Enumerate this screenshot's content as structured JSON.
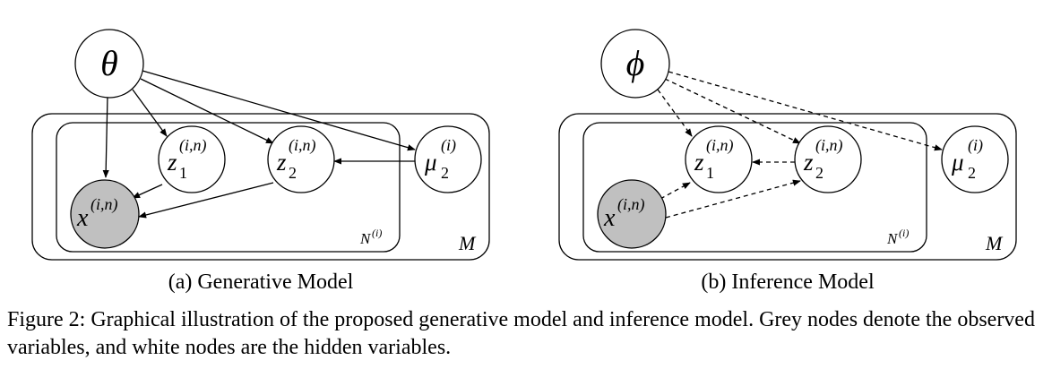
{
  "panel_a": {
    "subcaption": "(a) Generative Model",
    "param_symbol": "θ",
    "nodes": {
      "x": {
        "base": "x",
        "sup": "(i,n)",
        "sub": "",
        "observed": true
      },
      "z1": {
        "base": "z",
        "sup": "(i,n)",
        "sub": "1",
        "observed": false
      },
      "z2": {
        "base": "z",
        "sup": "(i,n)",
        "sub": "2",
        "observed": false
      },
      "mu2": {
        "base": "μ",
        "sup": "(i)",
        "sub": "2",
        "observed": false
      }
    },
    "inner_plate": {
      "base": "N",
      "sup": "(i)"
    },
    "outer_plate": "M",
    "edge_style": "solid"
  },
  "panel_b": {
    "subcaption": "(b) Inference Model",
    "param_symbol": "ϕ",
    "nodes": {
      "x": {
        "base": "x",
        "sup": "(i,n)",
        "sub": "",
        "observed": true
      },
      "z1": {
        "base": "z",
        "sup": "(i,n)",
        "sub": "1",
        "observed": false
      },
      "z2": {
        "base": "z",
        "sup": "(i,n)",
        "sub": "2",
        "observed": false
      },
      "mu2": {
        "base": "μ",
        "sup": "(i)",
        "sub": "2",
        "observed": false
      }
    },
    "inner_plate": {
      "base": "N",
      "sup": "(i)"
    },
    "outer_plate": "M",
    "edge_style": "dashed"
  },
  "caption": "Figure 2: Graphical illustration of the proposed generative model and inference model. Grey nodes denote the observed variables, and white nodes are the hidden variables.",
  "colors": {
    "observed_fill": "#c0c0c0",
    "hidden_fill": "#ffffff",
    "stroke": "#000000"
  }
}
